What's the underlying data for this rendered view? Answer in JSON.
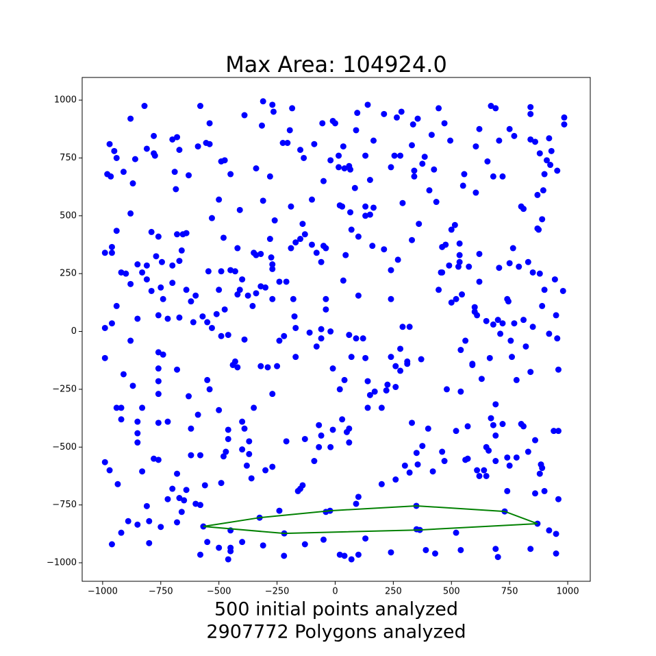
{
  "chart_data": {
    "type": "scatter",
    "title": "Max Area: 104924.0",
    "xlabel": [
      "500 initial points analyzed",
      "2907772 Polygons analyzed"
    ],
    "xlim": [
      -1088,
      1097
    ],
    "ylim": [
      -1080,
      1098
    ],
    "xticks": [
      {
        "value": -1000,
        "label": "−1000"
      },
      {
        "value": -750,
        "label": "−750"
      },
      {
        "value": -500,
        "label": "−500"
      },
      {
        "value": -250,
        "label": "−250"
      },
      0,
      250,
      500,
      750,
      1000
    ],
    "yticks": [
      {
        "value": -1000,
        "label": "−1000"
      },
      {
        "value": -750,
        "label": "−750"
      },
      {
        "value": -500,
        "label": "−500"
      },
      {
        "value": -250,
        "label": "−250"
      },
      0,
      250,
      500,
      750,
      1000
    ],
    "grid": false,
    "series": [
      {
        "type": "scatter",
        "color": "#0000ff",
        "x": [
          -970,
          -950,
          -940,
          -880,
          -820,
          -860,
          -810,
          -780,
          -780,
          -775,
          -700,
          -680,
          -670,
          -630,
          -590,
          -580,
          -555,
          -540,
          -540,
          -490,
          -475,
          -450,
          -390,
          -340,
          -315,
          -310,
          -280,
          -270,
          -265,
          -225,
          -205,
          -195,
          -185,
          -150,
          -135,
          -90,
          -55,
          -20,
          -10,
          0,
          15,
          15,
          35,
          40,
          60,
          65,
          85,
          90,
          95,
          130,
          140,
          150,
          165,
          210,
          240,
          255,
          265,
          280,
          285,
          330,
          335,
          340,
          340,
          355,
          375,
          385,
          405,
          415,
          425,
          435,
          445,
          470,
          495,
          550,
          555,
          605,
          605,
          620,
          655,
          670,
          680,
          690,
          705,
          720,
          750,
          770,
          800,
          810,
          840,
          840,
          840,
          860,
          870,
          875,
          880,
          895,
          900,
          910,
          920,
          925,
          930,
          955,
          985,
          985,
          -980,
          -965,
          -910,
          -870,
          -690,
          -685,
          -880,
          -940,
          -990,
          -960,
          -960,
          -850,
          -810,
          -790,
          -760,
          -770,
          -745,
          -680,
          -670,
          -655,
          -640,
          -700,
          -660,
          -545,
          -530,
          -500,
          -490,
          -480,
          -430,
          -410,
          -420,
          -350,
          -340,
          -320,
          -310,
          -280,
          -275,
          -270,
          -270,
          -260,
          -240,
          -190,
          -190,
          -170,
          -150,
          -140,
          -130,
          -100,
          -100,
          -80,
          -60,
          -50,
          -50,
          -40,
          20,
          30,
          45,
          65,
          70,
          100,
          130,
          130,
          150,
          165,
          160,
          210,
          240,
          270,
          290,
          330,
          360,
          455,
          460,
          475,
          490,
          500,
          515,
          530,
          535,
          535,
          535,
          575,
          620,
          705,
          750,
          765,
          790,
          830,
          850,
          870,
          890,
          880,
          945,
          980,
          -960,
          -990,
          -940,
          -920,
          -900,
          -880,
          -880,
          -850,
          -830,
          -810,
          -790,
          -760,
          -750,
          -740,
          -720,
          -700,
          -670,
          -640,
          -620,
          -610,
          -600,
          -570,
          -550,
          -530,
          -510,
          -500,
          -490,
          -475,
          -460,
          -450,
          -420,
          -410,
          -400,
          -390,
          -375,
          -355,
          -340,
          -320,
          -300,
          -270,
          -240,
          -220,
          -210,
          -180,
          -175,
          -170,
          -170,
          -110,
          -80,
          -60,
          -60,
          -40,
          -40,
          -20,
          -10,
          35,
          60,
          70,
          90,
          100,
          120,
          130,
          240,
          280,
          290,
          310,
          320,
          445,
          460,
          480,
          500,
          520,
          540,
          545,
          560,
          590,
          600,
          600,
          610,
          620,
          650,
          665,
          680,
          700,
          710,
          720,
          745,
          740,
          755,
          760,
          770,
          780,
          810,
          820,
          840,
          850,
          890,
          900,
          920,
          950,
          955,
          960,
          -990,
          -910,
          -870,
          -940,
          -920,
          -920,
          -850,
          -830,
          -850,
          -850,
          -760,
          -740,
          -760,
          -760,
          -760,
          -760,
          -720,
          -680,
          -620,
          -630,
          -590,
          -550,
          -540,
          -500,
          -480,
          -460,
          -460,
          -440,
          -430,
          -420,
          -400,
          -390,
          -370,
          -370,
          -350,
          -320,
          -290,
          -270,
          -250,
          -210,
          -130,
          -70,
          -70,
          -60,
          -20,
          -10,
          20,
          30,
          50,
          60,
          60,
          40,
          140,
          140,
          150,
          170,
          200,
          220,
          225,
          240,
          260,
          260,
          280,
          310,
          330,
          350,
          355,
          375,
          370,
          400,
          460,
          520,
          540,
          560,
          570,
          590,
          630,
          650,
          670,
          680,
          690,
          690,
          690,
          720,
          740,
          780,
          800,
          810,
          830,
          860,
          890,
          940,
          960,
          -990,
          -970,
          -935,
          -890,
          -920,
          -960,
          -850,
          -830,
          -810,
          -800,
          -800,
          -780,
          -760,
          -750,
          -720,
          -700,
          -680,
          -670,
          -680,
          -660,
          -650,
          -640,
          -620,
          -600,
          -580,
          -580,
          -560,
          -550,
          -580,
          -500,
          -490,
          -470,
          -450,
          -450,
          -450,
          -460,
          -400,
          -400,
          -380,
          -360,
          -310,
          -300,
          -270,
          -240,
          -220,
          -160,
          -150,
          -140,
          -130,
          -90,
          -50,
          -40,
          20,
          40,
          70,
          100,
          90,
          100,
          130,
          200,
          260,
          300,
          320,
          350,
          390,
          420,
          430,
          470,
          540,
          570,
          610,
          640,
          650,
          660,
          690,
          700,
          740,
          750,
          840,
          860,
          880,
          885,
          900,
          920,
          950,
          950,
          960,
          620,
          520,
          240,
          -567,
          -325,
          -22,
          349,
          729,
          870,
          364,
          -219
        ],
        "values": [
          810,
          780,
          750,
          920,
          975,
          745,
          790,
          845,
          770,
          760,
          830,
          840,
          785,
          675,
          800,
          975,
          815,
          900,
          810,
          735,
          740,
          680,
          935,
          705,
          890,
          995,
          670,
          980,
          950,
          815,
          815,
          870,
          965,
          785,
          750,
          810,
          900,
          740,
          910,
          900,
          760,
          710,
          800,
          705,
          715,
          700,
          620,
          870,
          945,
          760,
          980,
          655,
          825,
          940,
          710,
          760,
          925,
          760,
          950,
          805,
          895,
          695,
          670,
          920,
          725,
          755,
          610,
          850,
          700,
          560,
          965,
          900,
          825,
          630,
          680,
          600,
          800,
          875,
          735,
          975,
          670,
          965,
          825,
          670,
          875,
          845,
          540,
          530,
          970,
          940,
          830,
          820,
          590,
          440,
          770,
          610,
          680,
          740,
          835,
          720,
          780,
          695,
          925,
          895,
          680,
          670,
          690,
          640,
          690,
          615,
          510,
          435,
          340,
          365,
          340,
          290,
          285,
          430,
          410,
          325,
          300,
          420,
          305,
          420,
          425,
          285,
          350,
          260,
          490,
          570,
          260,
          405,
          260,
          525,
          360,
          340,
          330,
          335,
          565,
          400,
          320,
          290,
          270,
          480,
          215,
          540,
          360,
          385,
          400,
          465,
          420,
          570,
          375,
          340,
          300,
          370,
          650,
          360,
          545,
          540,
          330,
          515,
          440,
          410,
          540,
          500,
          505,
          535,
          370,
          355,
          265,
          310,
          555,
          395,
          465,
          255,
          365,
          375,
          285,
          440,
          460,
          280,
          380,
          330,
          300,
          280,
          335,
          275,
          295,
          360,
          280,
          300,
          255,
          445,
          485,
          250,
          225,
          175,
          35,
          15,
          110,
          255,
          250,
          -40,
          205,
          55,
          255,
          225,
          175,
          70,
          190,
          140,
          55,
          210,
          60,
          180,
          130,
          40,
          155,
          65,
          40,
          15,
          75,
          180,
          -20,
          95,
          -15,
          265,
          160,
          180,
          225,
          -35,
          155,
          110,
          165,
          195,
          190,
          140,
          -40,
          -20,
          215,
          140,
          65,
          15,
          -110,
          -5,
          -65,
          -30,
          10,
          140,
          95,
          0,
          -160,
          220,
          -15,
          -110,
          -30,
          155,
          -30,
          -115,
          140,
          -75,
          20,
          -130,
          20,
          180,
          255,
          -250,
          125,
          140,
          -80,
          160,
          -40,
          -140,
          105,
          85,
          70,
          215,
          45,
          -115,
          30,
          50,
          -10,
          35,
          130,
          140,
          -40,
          -110,
          35,
          -210,
          50,
          -65,
          -175,
          20,
          110,
          180,
          -10,
          70,
          -30,
          -165,
          -115,
          -185,
          -235,
          -330,
          -330,
          -380,
          -390,
          -330,
          -480,
          -440,
          -90,
          -100,
          -160,
          -215,
          -270,
          -395,
          -390,
          -165,
          -420,
          -280,
          -360,
          -210,
          -250,
          -340,
          -540,
          -425,
          -465,
          -145,
          -130,
          -155,
          -390,
          -420,
          -475,
          -530,
          -330,
          -150,
          -155,
          -270,
          -150,
          -475,
          -465,
          -405,
          -500,
          -450,
          -500,
          -425,
          -250,
          -380,
          -435,
          -420,
          -480,
          -210,
          -215,
          -330,
          -275,
          -260,
          -330,
          -255,
          -230,
          -110,
          -150,
          -240,
          -170,
          -140,
          -395,
          -525,
          -575,
          -495,
          -120,
          -420,
          -520,
          -430,
          -260,
          -555,
          -410,
          -145,
          -205,
          -500,
          -375,
          -405,
          -450,
          -560,
          -315,
          -400,
          -545,
          -545,
          -400,
          -410,
          -520,
          -470,
          -590,
          -430,
          -430,
          -565,
          -600,
          -660,
          -820,
          -870,
          -920,
          -835,
          -605,
          -755,
          -820,
          -915,
          -550,
          -555,
          -845,
          -725,
          -680,
          -615,
          -720,
          -825,
          -780,
          -730,
          -685,
          -535,
          -745,
          -750,
          -535,
          -665,
          -910,
          -965,
          -935,
          -655,
          -520,
          -860,
          -935,
          -950,
          -985,
          -510,
          -910,
          -580,
          -635,
          -925,
          -600,
          -585,
          -775,
          -970,
          -690,
          -680,
          -665,
          -920,
          -560,
          -900,
          -780,
          -965,
          -970,
          -985,
          -965,
          -745,
          -715,
          -895,
          -660,
          -640,
          -580,
          -610,
          -855,
          -945,
          -605,
          -960,
          -560,
          -945,
          -550,
          -600,
          -600,
          -625,
          -515,
          -940,
          -975,
          -690,
          -580,
          -940,
          -700,
          -615,
          -575,
          -690,
          -860,
          -875,
          -960,
          -725,
          -625,
          -870,
          -955,
          -843,
          -805,
          -775,
          -754,
          -778,
          -831,
          -858,
          -873
        ]
      },
      {
        "type": "line",
        "color": "#008000",
        "closed": true,
        "x": [
          -567,
          -325,
          -22,
          349,
          729,
          870,
          364,
          -219
        ],
        "values": [
          -843,
          -805,
          -775,
          -754,
          -778,
          -831,
          -858,
          -873
        ]
      }
    ]
  }
}
